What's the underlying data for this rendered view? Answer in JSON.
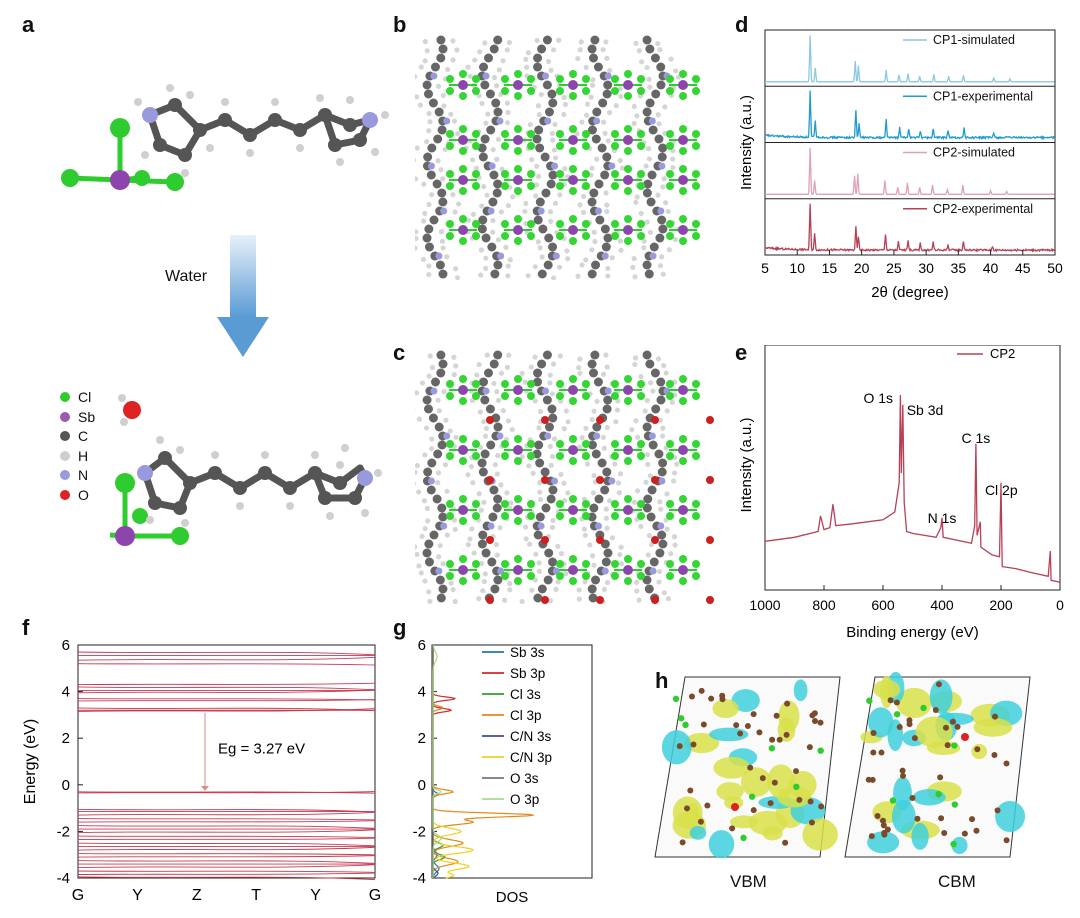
{
  "panels": {
    "a": "a",
    "b": "b",
    "c": "c",
    "d": "d",
    "e": "e",
    "f": "f",
    "g": "g",
    "h": "h"
  },
  "panel_a": {
    "arrow_label": "Water",
    "legend": [
      {
        "label": "Cl",
        "color": "#2ecc2e"
      },
      {
        "label": "Sb",
        "color": "#9b59b6"
      },
      {
        "label": "C",
        "color": "#555555"
      },
      {
        "label": "H",
        "color": "#cfcfcf"
      },
      {
        "label": "N",
        "color": "#9999dd"
      },
      {
        "label": "O",
        "color": "#dd2222"
      }
    ]
  },
  "panel_h": {
    "labels": [
      "VBM",
      "CBM"
    ]
  },
  "chart_data": [
    {
      "id": "d",
      "type": "line",
      "xlabel": "2θ (degree)",
      "ylabel": "Intensity (a.u.)",
      "xlim": [
        5,
        50
      ],
      "xticks": [
        5,
        10,
        15,
        20,
        25,
        30,
        35,
        40,
        45,
        50
      ],
      "series": [
        {
          "name": "CP1-simulated",
          "color": "#8cc8e0",
          "peaks": [
            [
              12.0,
              1.0
            ],
            [
              12.8,
              0.3
            ],
            [
              19.0,
              0.45
            ],
            [
              19.5,
              0.35
            ],
            [
              23.8,
              0.25
            ],
            [
              25.8,
              0.15
            ],
            [
              27.2,
              0.18
            ],
            [
              29.0,
              0.12
            ],
            [
              31.2,
              0.16
            ],
            [
              33.5,
              0.12
            ],
            [
              35.8,
              0.14
            ],
            [
              40.5,
              0.08
            ],
            [
              43.0,
              0.06
            ]
          ]
        },
        {
          "name": "CP1-experimental",
          "color": "#1f9ccc",
          "peaks": [
            [
              12.0,
              1.0
            ],
            [
              12.8,
              0.35
            ],
            [
              19.1,
              0.6
            ],
            [
              19.6,
              0.3
            ],
            [
              23.8,
              0.4
            ],
            [
              25.9,
              0.22
            ],
            [
              27.3,
              0.2
            ],
            [
              29.1,
              0.15
            ],
            [
              31.1,
              0.2
            ],
            [
              33.4,
              0.16
            ],
            [
              35.9,
              0.2
            ],
            [
              40.5,
              0.1
            ]
          ]
        },
        {
          "name": "CP2-simulated",
          "color": "#e0a0b8",
          "peaks": [
            [
              12.0,
              1.0
            ],
            [
              12.7,
              0.3
            ],
            [
              18.9,
              0.4
            ],
            [
              19.4,
              0.45
            ],
            [
              23.6,
              0.3
            ],
            [
              25.6,
              0.15
            ],
            [
              27.1,
              0.25
            ],
            [
              29.0,
              0.15
            ],
            [
              31.0,
              0.2
            ],
            [
              33.3,
              0.1
            ],
            [
              35.7,
              0.2
            ],
            [
              40.0,
              0.08
            ],
            [
              42.5,
              0.06
            ]
          ]
        },
        {
          "name": "CP2-experimental",
          "color": "#b84055",
          "peaks": [
            [
              12.0,
              1.0
            ],
            [
              12.7,
              0.35
            ],
            [
              19.1,
              0.5
            ],
            [
              19.5,
              0.3
            ],
            [
              23.7,
              0.35
            ],
            [
              25.7,
              0.18
            ],
            [
              27.2,
              0.22
            ],
            [
              29.1,
              0.15
            ],
            [
              31.1,
              0.18
            ],
            [
              33.4,
              0.12
            ],
            [
              35.8,
              0.2
            ],
            [
              40.3,
              0.08
            ]
          ]
        }
      ]
    },
    {
      "id": "e",
      "type": "line",
      "xlabel": "Binding energy (eV)",
      "ylabel": "Intensity (a.u.)",
      "xlim": [
        1000,
        0
      ],
      "xticks": [
        1000,
        800,
        600,
        400,
        200,
        0
      ],
      "legend": "CP2",
      "color": "#b84055",
      "annotations": [
        {
          "text": "O 1s",
          "x": 532
        },
        {
          "text": "Sb 3d",
          "x": 540
        },
        {
          "text": "C 1s",
          "x": 285
        },
        {
          "text": "N 1s",
          "x": 400
        },
        {
          "text": "Cl 2p",
          "x": 199
        }
      ],
      "points": [
        [
          1000,
          0.25
        ],
        [
          900,
          0.27
        ],
        [
          820,
          0.3
        ],
        [
          812,
          0.38
        ],
        [
          800,
          0.31
        ],
        [
          780,
          0.32
        ],
        [
          770,
          0.44
        ],
        [
          760,
          0.33
        ],
        [
          700,
          0.34
        ],
        [
          600,
          0.36
        ],
        [
          560,
          0.4
        ],
        [
          545,
          0.55
        ],
        [
          541,
          1.0
        ],
        [
          538,
          0.6
        ],
        [
          533,
          0.95
        ],
        [
          528,
          0.45
        ],
        [
          520,
          0.3
        ],
        [
          500,
          0.29
        ],
        [
          420,
          0.27
        ],
        [
          404,
          0.32
        ],
        [
          400,
          0.37
        ],
        [
          396,
          0.27
        ],
        [
          300,
          0.24
        ],
        [
          289,
          0.33
        ],
        [
          285,
          0.75
        ],
        [
          281,
          0.28
        ],
        [
          270,
          0.35
        ],
        [
          268,
          0.22
        ],
        [
          230,
          0.18
        ],
        [
          205,
          0.17
        ],
        [
          200,
          0.55
        ],
        [
          196,
          0.12
        ],
        [
          150,
          0.11
        ],
        [
          100,
          0.09
        ],
        [
          40,
          0.07
        ],
        [
          33,
          0.2
        ],
        [
          30,
          0.05
        ],
        [
          0,
          0.04
        ]
      ]
    },
    {
      "id": "f",
      "type": "line",
      "xlabel": "",
      "ylabel": "Energy (eV)",
      "ylim": [
        -4,
        6
      ],
      "yticks": [
        -4,
        -2,
        0,
        2,
        4,
        6
      ],
      "xticklabels": [
        "G",
        "Y",
        "Z",
        "T",
        "Y",
        "G"
      ],
      "annotation": "Eg = 3.27 eV",
      "conduction_bands": [
        5.7,
        5.55,
        5.35,
        5.2,
        4.3,
        4.2,
        4.05,
        3.95,
        3.7,
        3.6,
        3.3,
        3.2,
        3.15
      ],
      "valence_bands": [
        -0.3,
        -0.35,
        -1.05,
        -1.15,
        -1.3,
        -1.45,
        -1.6,
        -1.75,
        -1.9,
        -2.05,
        -2.2,
        -2.35,
        -2.5,
        -2.65,
        -2.8,
        -2.95,
        -3.1,
        -3.25,
        -3.4,
        -3.55,
        -3.7,
        -3.85,
        -3.95
      ]
    },
    {
      "id": "g",
      "type": "line",
      "xlabel": "DOS",
      "ylabel": "",
      "ylim": [
        -4,
        6
      ],
      "yticks": [
        -4,
        -2,
        0,
        2,
        4,
        6
      ],
      "series": [
        {
          "name": "Sb 3s",
          "color": "#1f77b4"
        },
        {
          "name": "Sb 3p",
          "color": "#d62728"
        },
        {
          "name": "Cl 3s",
          "color": "#2ca02c"
        },
        {
          "name": "Cl 3p",
          "color": "#e08a1e"
        },
        {
          "name": "C/N 3s",
          "color": "#3b4c9b"
        },
        {
          "name": "C/N 3p",
          "color": "#f0d020"
        },
        {
          "name": "O 3s",
          "color": "#777777"
        },
        {
          "name": "O 3p",
          "color": "#a8d890"
        }
      ]
    }
  ]
}
